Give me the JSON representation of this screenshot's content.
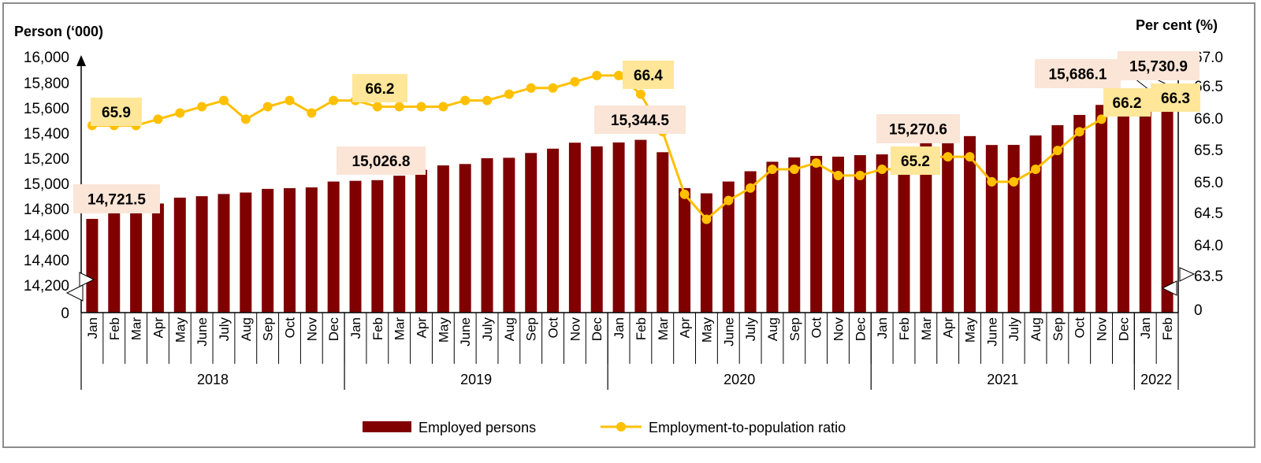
{
  "chart_data": {
    "type": "bar+line",
    "left_axis_title": "Person (‘000)",
    "right_axis_title": "Per cent (%)",
    "left_ticks": [
      "16,000",
      "15,800",
      "15,600",
      "15,400",
      "15,200",
      "15,000",
      "14,800",
      "14,600",
      "14,400",
      "14,200",
      "0"
    ],
    "right_ticks": [
      "67.0",
      "66.5",
      "66.0",
      "65.5",
      "65.0",
      "64.5",
      "64.0",
      "63.5",
      "0"
    ],
    "left_ylim": [
      14200,
      16000
    ],
    "right_ylim": [
      63.5,
      67.0
    ],
    "axis_break": true,
    "years": [
      {
        "label": "2018",
        "months": 12
      },
      {
        "label": "2019",
        "months": 12
      },
      {
        "label": "2020",
        "months": 12
      },
      {
        "label": "2021",
        "months": 12
      },
      {
        "label": "2022",
        "months": 2
      }
    ],
    "months": [
      "Jan",
      "Feb",
      "Mar",
      "Apr",
      "May",
      "June",
      "July",
      "Aug",
      "Sep",
      "Oct",
      "Nov",
      "Dec",
      "Jan",
      "Feb",
      "Mar",
      "Apr",
      "May",
      "June",
      "July",
      "Aug",
      "Sep",
      "Oct",
      "Nov",
      "Dec",
      "Jan",
      "Feb",
      "Mar",
      "Apr",
      "May",
      "June",
      "July",
      "Aug",
      "Sep",
      "Oct",
      "Nov",
      "Dec",
      "Jan",
      "Feb",
      "Mar",
      "Apr",
      "May",
      "June",
      "July",
      "Aug",
      "Sep",
      "Oct",
      "Nov",
      "Dec",
      "Jan",
      "Feb"
    ],
    "series": [
      {
        "name": "Employed persons",
        "type": "bar",
        "axis": "left",
        "color": "#800000",
        "values": [
          14721.5,
          14767.7,
          14779.0,
          14842.7,
          14888.8,
          14900.4,
          14917.7,
          14929.2,
          14958.0,
          14963.8,
          14969.6,
          15015.8,
          15021.5,
          15026.8,
          15062.0,
          15108.0,
          15143.0,
          15154.0,
          15200.0,
          15203.0,
          15241.0,
          15275.0,
          15322.0,
          15293.0,
          15324.0,
          15344.5,
          15247.0,
          14964.0,
          14923.0,
          15016.0,
          15097.0,
          15172.0,
          15206.0,
          15218.0,
          15212.0,
          15224.0,
          15230.0,
          15270.6,
          15333.0,
          15356.0,
          15374.0,
          15304.0,
          15305.0,
          15379.0,
          15460.0,
          15541.0,
          15620.0,
          15686.1,
          15709.0,
          15730.9
        ]
      },
      {
        "name": "Employment-to-population ratio",
        "type": "line",
        "axis": "right",
        "color": "#FFC000",
        "values": [
          65.9,
          65.9,
          65.9,
          66.0,
          66.1,
          66.2,
          66.3,
          66.0,
          66.2,
          66.3,
          66.1,
          66.3,
          66.3,
          66.2,
          66.2,
          66.2,
          66.2,
          66.3,
          66.3,
          66.4,
          66.5,
          66.5,
          66.6,
          66.7,
          66.7,
          66.4,
          65.8,
          64.8,
          64.4,
          64.7,
          64.9,
          65.2,
          65.2,
          65.3,
          65.1,
          65.1,
          65.2,
          65.2,
          65.4,
          65.4,
          65.4,
          65.0,
          65.0,
          65.2,
          65.5,
          65.8,
          66.0,
          66.2,
          66.2,
          66.3
        ]
      }
    ],
    "annotations": [
      {
        "text": "14,721.5",
        "kind": "bar"
      },
      {
        "text": "65.9",
        "kind": "line"
      },
      {
        "text": "66.2",
        "kind": "line"
      },
      {
        "text": "15,026.8",
        "kind": "bar"
      },
      {
        "text": "66.4",
        "kind": "line"
      },
      {
        "text": "15,344.5",
        "kind": "bar"
      },
      {
        "text": "15,270.6",
        "kind": "bar"
      },
      {
        "text": "65.2",
        "kind": "line"
      },
      {
        "text": "15,686.1",
        "kind": "bar"
      },
      {
        "text": "15,730.9",
        "kind": "bar"
      },
      {
        "text": "66.2",
        "kind": "line"
      },
      {
        "text": "66.3",
        "kind": "line"
      }
    ],
    "legend": {
      "position": "bottom-center",
      "items": [
        "Employed persons",
        "Employment-to-population ratio"
      ]
    },
    "colors": {
      "bar": "#800000",
      "line": "#FFC000",
      "bar_label_bg": "#FBE5D6",
      "line_label_bg": "#FFE699"
    }
  }
}
